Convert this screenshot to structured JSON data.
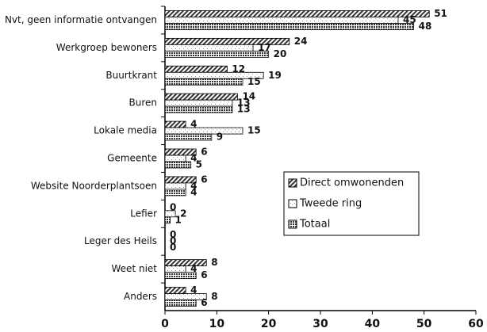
{
  "chart_data": {
    "type": "barh",
    "categories": [
      "Nvt, geen informatie ontvangen",
      "Werkgroep bewoners",
      "Buurtkrant",
      "Buren",
      "Lokale media",
      "Gemeente",
      "Website Noorderplantsoen",
      "Lefier",
      "Leger des Heils",
      "Weet niet",
      "Anders"
    ],
    "series": [
      {
        "name": "Direct omwonenden",
        "color": "#333333",
        "values": [
          51,
          24,
          12,
          14,
          4,
          6,
          6,
          0,
          0,
          8,
          4
        ]
      },
      {
        "name": "Tweede ring",
        "color": "#aaaaaa",
        "values": [
          45,
          17,
          19,
          13,
          15,
          4,
          4,
          2,
          0,
          4,
          8
        ]
      },
      {
        "name": "Totaal",
        "color": "#555555",
        "values": [
          48,
          20,
          15,
          13,
          9,
          5,
          4,
          1,
          0,
          6,
          6
        ]
      }
    ],
    "xlim": [
      0,
      60
    ],
    "xticks": [
      0,
      10,
      20,
      30,
      40,
      50,
      60
    ],
    "legend": "right"
  }
}
